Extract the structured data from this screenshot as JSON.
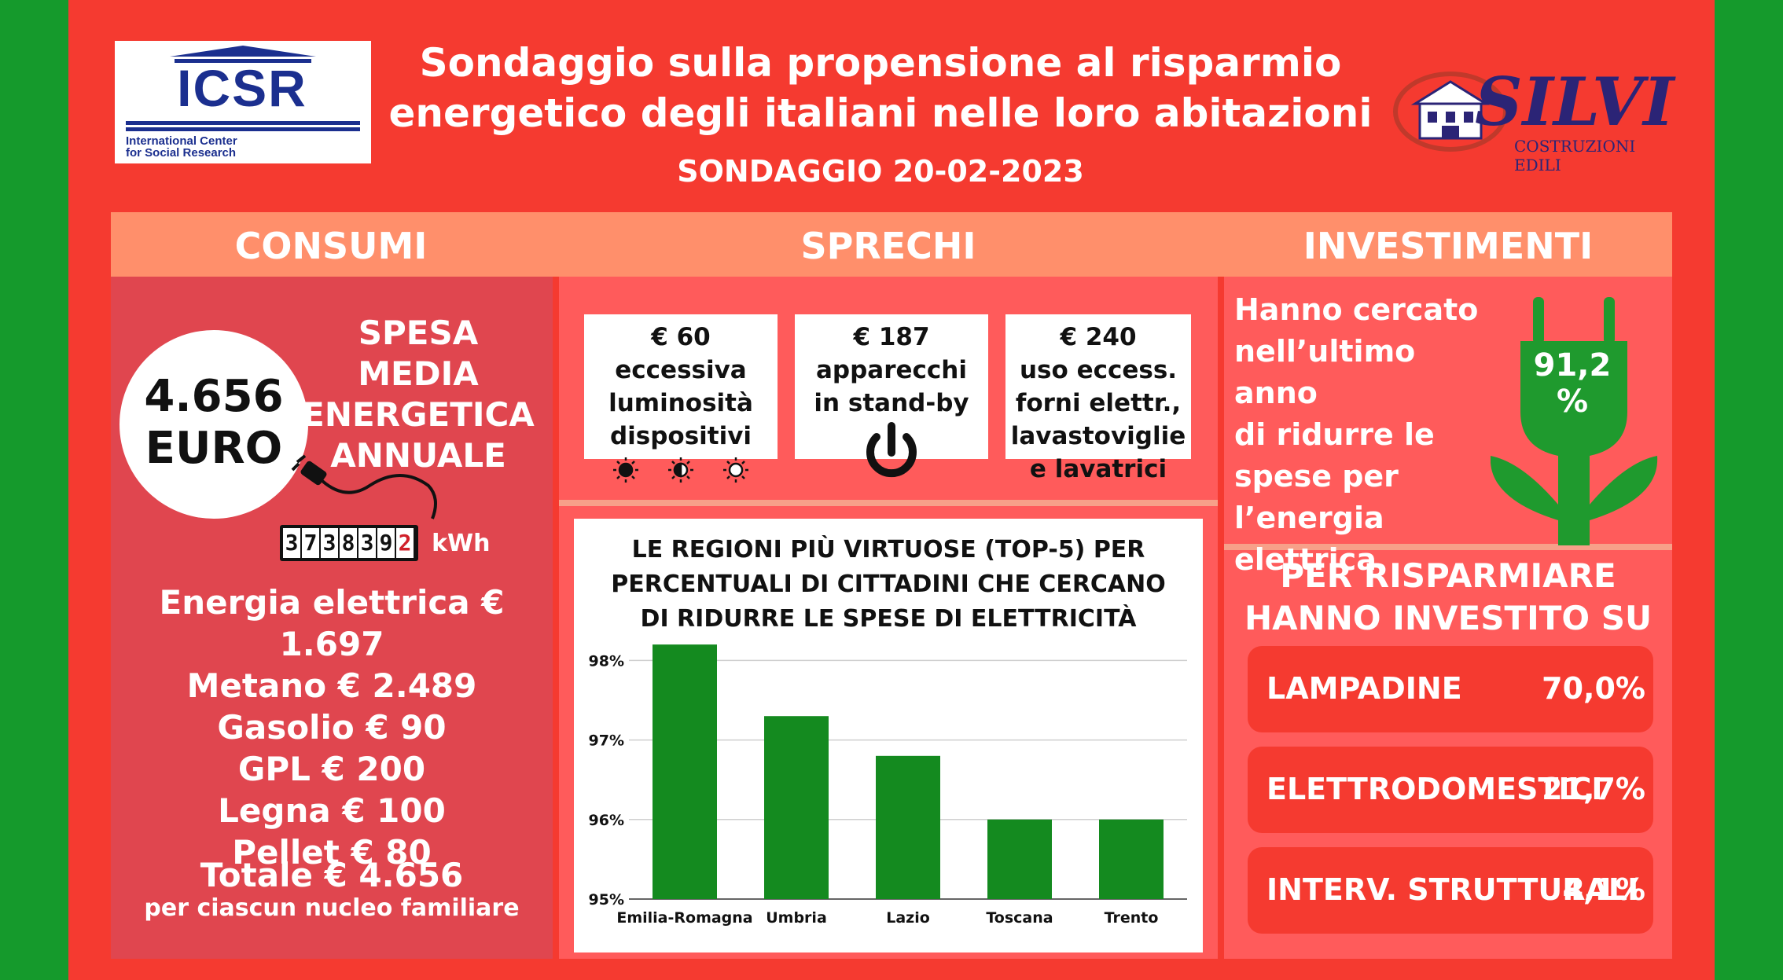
{
  "header": {
    "title_line1": "Sondaggio sulla propensione al risparmio",
    "title_line2": "energetico degli italiani nelle loro abitazioni",
    "subtitle": "SONDAGGIO 20-02-2023"
  },
  "logos": {
    "left_main": "ICSR",
    "left_sub1": "International Center",
    "left_sub2": "for Social Research",
    "right_main": "SILVI",
    "right_sub": "COSTRUZIONI EDILI"
  },
  "sections": {
    "consumi": "CONSUMI",
    "sprechi": "SPRECHI",
    "investimenti": "INVESTIMENTI"
  },
  "consumi": {
    "circle_value": "4.656",
    "circle_unit": "EURO",
    "spesa_line1": "SPESA MEDIA",
    "spesa_line2": "ENERGETICA",
    "spesa_line3": "ANNUALE",
    "meter_digits": [
      "3",
      "7",
      "3",
      "8",
      "3",
      "9",
      "2"
    ],
    "meter_unit": "kWh",
    "items": [
      "Energia elettrica € 1.697",
      "Metano € 2.489",
      "Gasolio € 90",
      "GPL € 200",
      "Legna € 100",
      "Pellet € 80"
    ],
    "totale": "Totale € 4.656",
    "totale_sub": "per ciascun nucleo familiare"
  },
  "sprechi": {
    "cards": [
      {
        "amount": "€ 60",
        "line1": "eccessiva",
        "line2": "luminosità",
        "line3": "dispositivi",
        "icon": "brightness-icons"
      },
      {
        "amount": "€ 187",
        "line1": "apparecchi",
        "line2": "in stand-by",
        "line3": "",
        "icon": "power-icon"
      },
      {
        "amount": "€ 240",
        "line1": "uso eccess.",
        "line2": "forni elettr.,",
        "line3": "lavastoviglie",
        "line4": "e lavatrici"
      }
    ]
  },
  "chart_data": {
    "type": "bar",
    "title_line1": "LE REGIONI PIÙ VIRTUOSE (TOP-5) PER",
    "title_line2": "PERCENTUALI DI CITTADINI CHE CERCANO",
    "title_line3": "DI RIDURRE LE SPESE DI ELETTRICITÀ",
    "categories": [
      "Emilia-Romagna",
      "Umbria",
      "Lazio",
      "Toscana",
      "Trento"
    ],
    "values": [
      98.2,
      97.3,
      96.8,
      96.0,
      96.0
    ],
    "ylim": [
      95,
      98.3
    ],
    "yticks": [
      95,
      96,
      97,
      98
    ],
    "ytick_labels": [
      "95%",
      "96%",
      "97%",
      "98%"
    ],
    "bar_color": "#148a1f",
    "grid": true
  },
  "investimenti": {
    "text_line1": "Hanno cercato",
    "text_line2": "nell’ultimo anno",
    "text_line3": "di ridurre le",
    "text_line4": "spese per",
    "text_line5": "l’energia",
    "text_line6": "elettrica",
    "pct_line1": "91,2",
    "pct_line2": "%",
    "per_line1": "PER RISPARMIARE",
    "per_line2": "HANNO INVESTITO SU",
    "rows": [
      {
        "label": "LAMPADINE",
        "value": "70,0%"
      },
      {
        "label": "ELETTRODOMESTICI",
        "value": "21,7%"
      },
      {
        "label": "INTERV. STRUTTURALI",
        "value": "4,1%"
      }
    ]
  },
  "colors": {
    "background_outer": "#159a2c",
    "background_main": "#f53a30",
    "header_band": "#ff8f6b",
    "plug_green": "#1f9a2e"
  }
}
